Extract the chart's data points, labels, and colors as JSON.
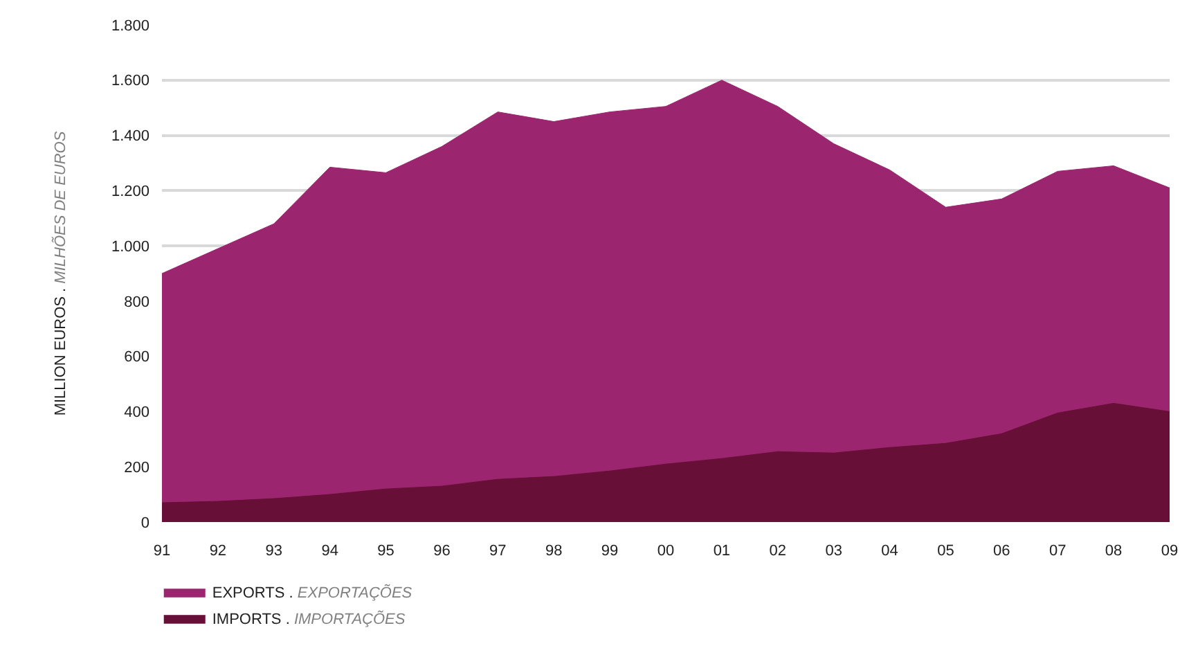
{
  "chart_data": {
    "type": "area",
    "ylabel": "MILLION EUROS . MILHÕES DE EUROS",
    "categories": [
      "91",
      "92",
      "93",
      "94",
      "95",
      "96",
      "97",
      "98",
      "99",
      "00",
      "01",
      "02",
      "03",
      "04",
      "05",
      "06",
      "07",
      "08",
      "09"
    ],
    "series": [
      {
        "name": "EXPORTS . EXPORTAÇÕES",
        "color": "#9b256e",
        "values": [
          900,
          990,
          1080,
          1285,
          1265,
          1360,
          1485,
          1450,
          1485,
          1505,
          1600,
          1505,
          1370,
          1275,
          1140,
          1170,
          1270,
          1290,
          1210
        ]
      },
      {
        "name": "IMPORTS . IMPORTAÇÕES",
        "color": "#670f37",
        "values": [
          70,
          75,
          85,
          100,
          120,
          130,
          155,
          165,
          185,
          210,
          230,
          255,
          250,
          270,
          285,
          320,
          395,
          430,
          400
        ]
      }
    ],
    "ylim": [
      0,
      1800
    ],
    "yticks": [
      0,
      200,
      400,
      600,
      800,
      {
        "value": 1000,
        "label": "1.000"
      },
      {
        "value": 1200,
        "label": "1.200"
      },
      {
        "value": 1400,
        "label": "1.400"
      },
      {
        "value": 1600,
        "label": "1.600"
      },
      {
        "value": 1800,
        "label": "1.800"
      }
    ],
    "grid": "y",
    "legend": "bottom left"
  }
}
